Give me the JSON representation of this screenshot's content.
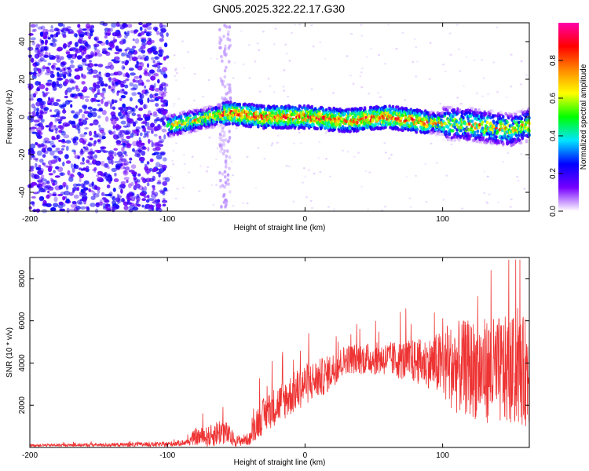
{
  "chart_data": [
    {
      "type": "heatmap",
      "title": "GN05.2025.322.22.17.G30",
      "xlabel": "Height of straight line (km)",
      "ylabel": "Frequency (Hz)",
      "xlim": [
        -200,
        163
      ],
      "ylim": [
        -50,
        50
      ],
      "xticks": [
        -200,
        -100,
        0,
        100
      ],
      "yticks": [
        -40,
        -20,
        0,
        20,
        40
      ],
      "colorbar": {
        "label": "Normalized spectral amplitude",
        "range": [
          0,
          1
        ],
        "ticks": [
          "0.0",
          "0.2",
          "0.4",
          "0.6",
          "0.8"
        ],
        "colors": [
          "#ffffff",
          "#7700ff",
          "#0000ff",
          "#00e5ff",
          "#00ff00",
          "#ffff00",
          "#ff8800",
          "#ff0000",
          "#ff00aa"
        ]
      },
      "description_points": {
        "noise_region_x": [
          -200,
          -100
        ],
        "ridge": [
          {
            "x": -100,
            "f": -5
          },
          {
            "x": -75,
            "f": -1
          },
          {
            "x": -55,
            "f": 2
          },
          {
            "x": -30,
            "f": 0
          },
          {
            "x": 0,
            "f": 0
          },
          {
            "x": 30,
            "f": -2
          },
          {
            "x": 60,
            "f": 0
          },
          {
            "x": 90,
            "f": -3
          },
          {
            "x": 120,
            "f": -4
          },
          {
            "x": 150,
            "f": -7
          },
          {
            "x": 163,
            "f": -4
          }
        ],
        "vertical_artifact_x": -58
      }
    },
    {
      "type": "line",
      "xlabel": "Height of straight line (km)",
      "ylabel": "SNR (10 * v/v)",
      "xlim": [
        -200,
        163
      ],
      "ylim": [
        0,
        9000
      ],
      "xticks": [
        -200,
        -100,
        0,
        100
      ],
      "yticks": [
        2000,
        4000,
        6000,
        8000
      ],
      "series": [
        {
          "name": "SNR",
          "color": "#ee3333",
          "envelope": [
            {
              "x": -200,
              "mean": 100,
              "spread": 60
            },
            {
              "x": -150,
              "mean": 120,
              "spread": 80
            },
            {
              "x": -100,
              "mean": 150,
              "spread": 120
            },
            {
              "x": -85,
              "mean": 250,
              "spread": 150
            },
            {
              "x": -80,
              "mean": 500,
              "spread": 400
            },
            {
              "x": -70,
              "mean": 500,
              "spread": 500
            },
            {
              "x": -60,
              "mean": 800,
              "spread": 700
            },
            {
              "x": -50,
              "mean": 300,
              "spread": 250
            },
            {
              "x": -40,
              "mean": 400,
              "spread": 300
            },
            {
              "x": -35,
              "mean": 1200,
              "spread": 800
            },
            {
              "x": -25,
              "mean": 1800,
              "spread": 900
            },
            {
              "x": -10,
              "mean": 2500,
              "spread": 1000
            },
            {
              "x": 0,
              "mean": 3000,
              "spread": 1000
            },
            {
              "x": 15,
              "mean": 3400,
              "spread": 900
            },
            {
              "x": 30,
              "mean": 4200,
              "spread": 700
            },
            {
              "x": 60,
              "mean": 4200,
              "spread": 800
            },
            {
              "x": 90,
              "mean": 4000,
              "spread": 1200
            },
            {
              "x": 110,
              "mean": 3800,
              "spread": 2200
            },
            {
              "x": 140,
              "mean": 3600,
              "spread": 2600
            },
            {
              "x": 163,
              "mean": 3600,
              "spread": 2600
            }
          ]
        }
      ]
    }
  ]
}
